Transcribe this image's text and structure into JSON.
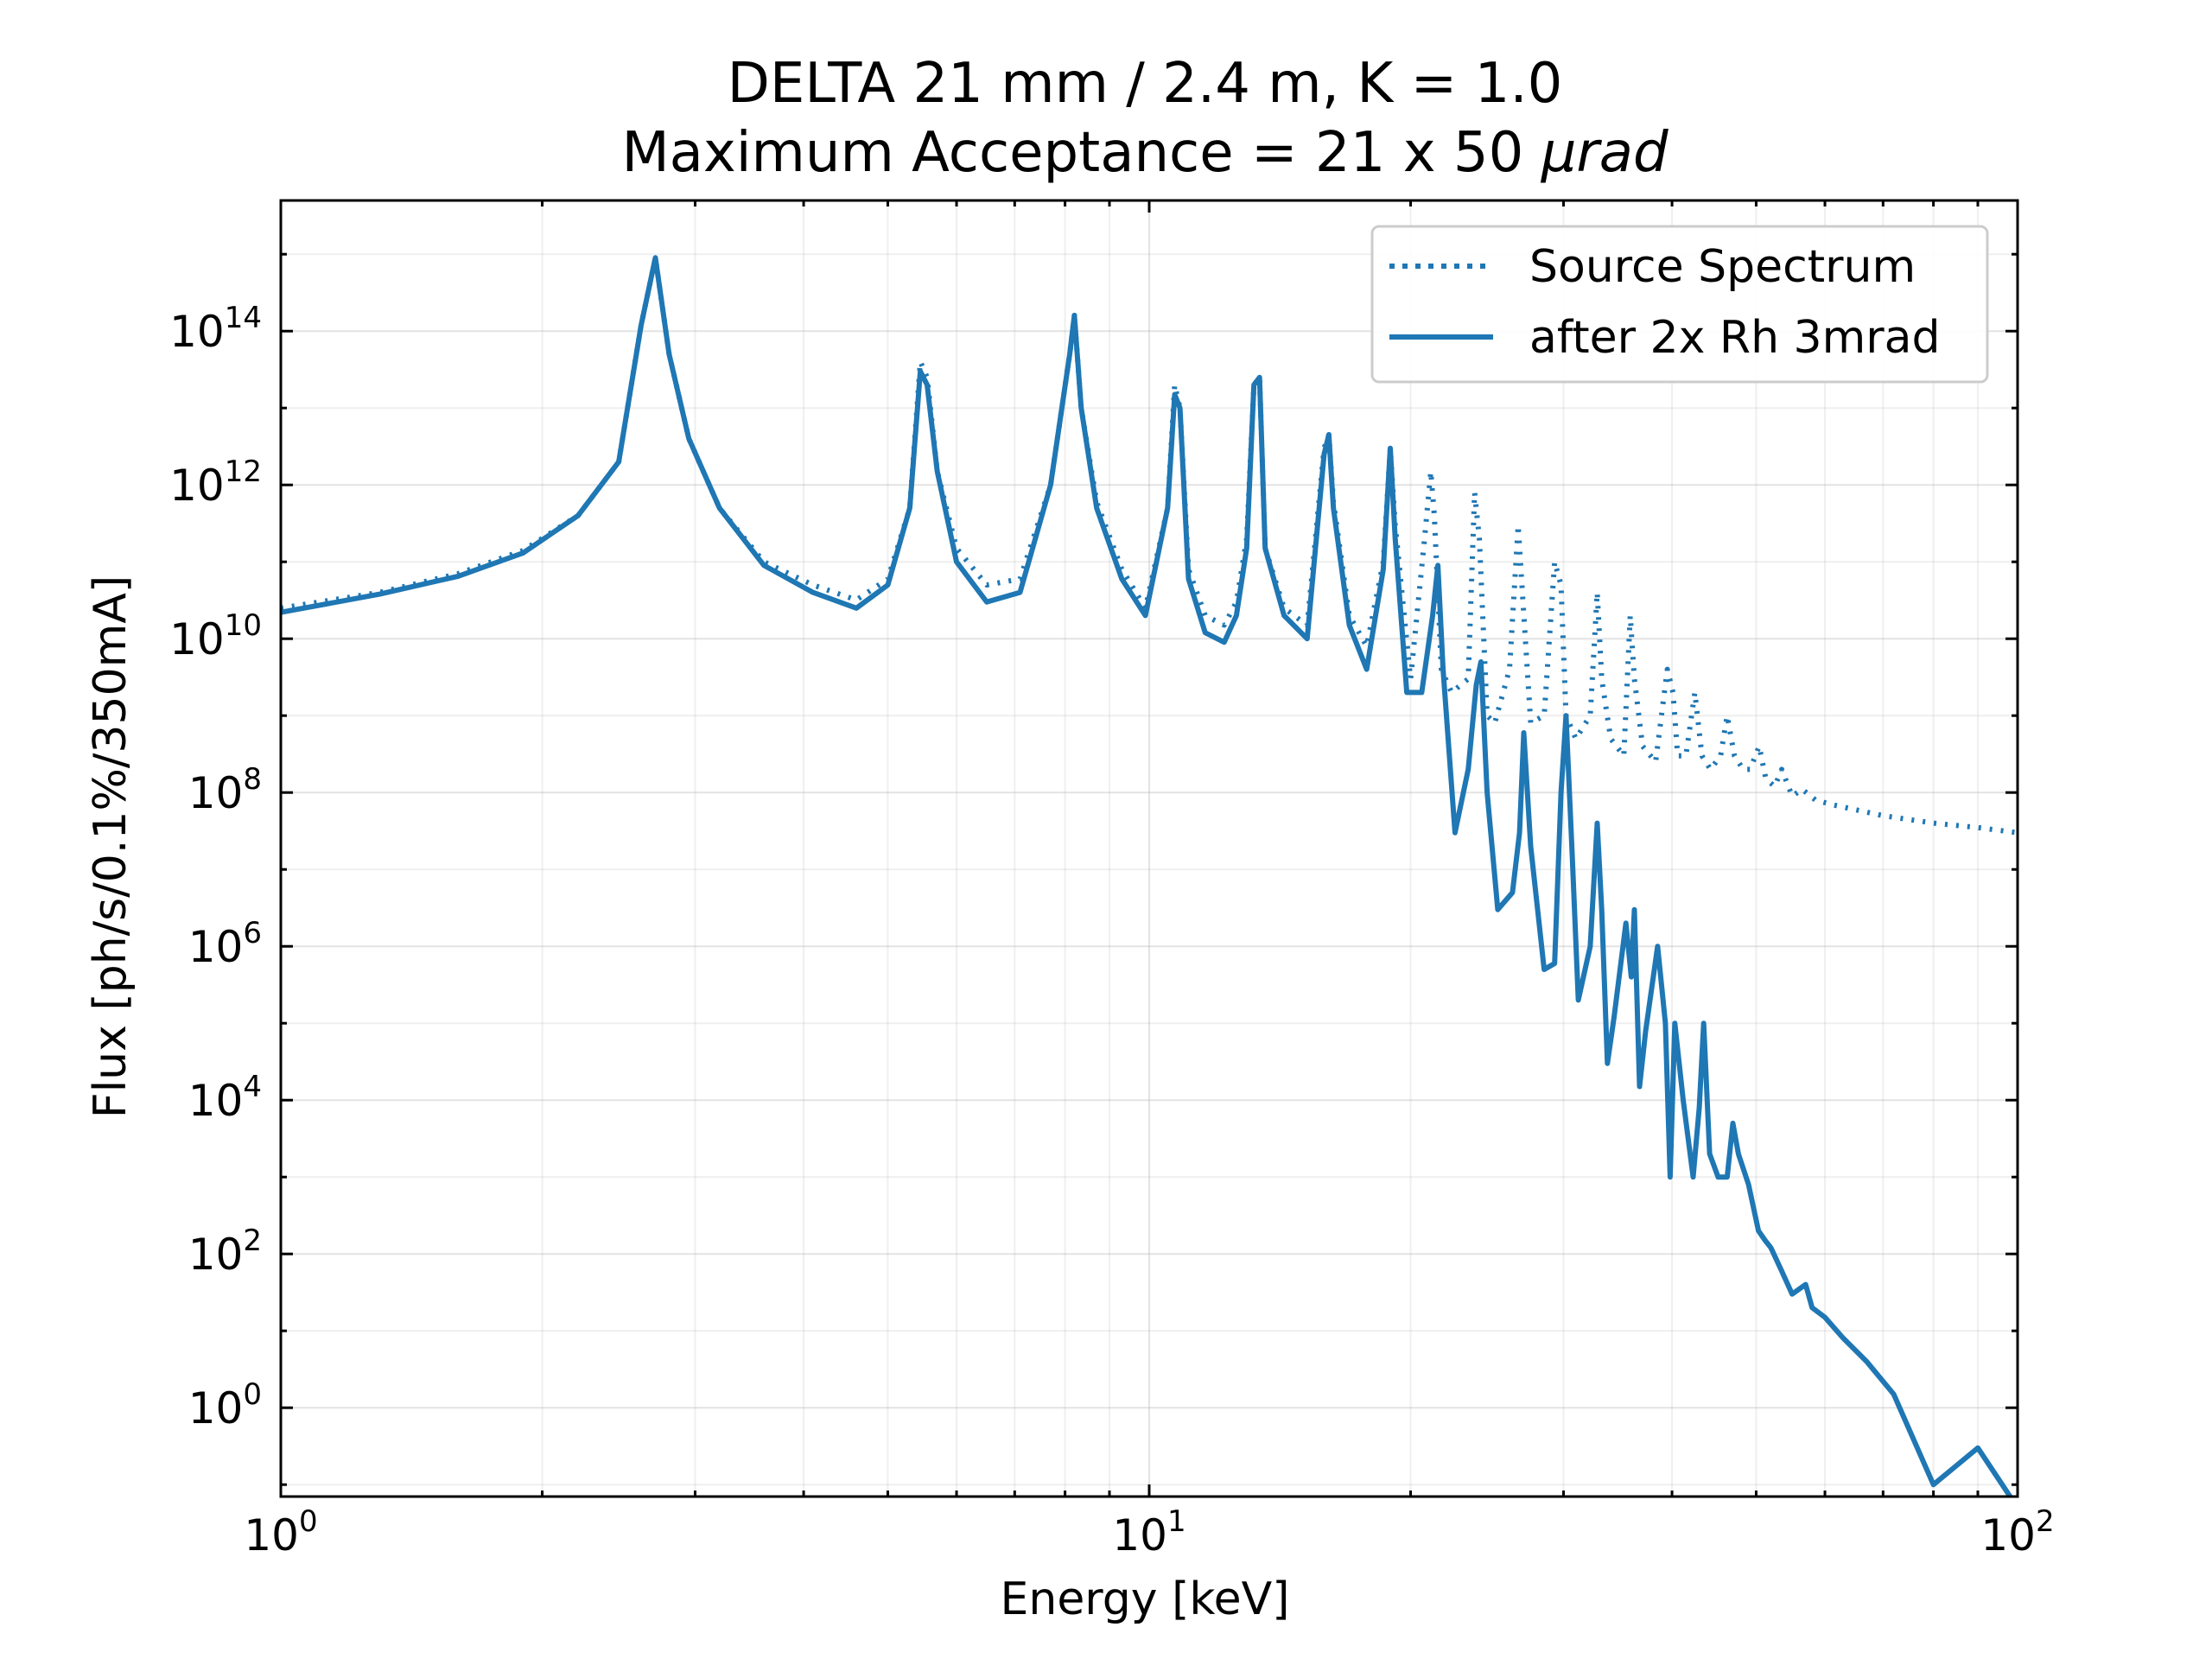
{
  "chart_data": {
    "type": "line",
    "title_line1": "DELTA 21 mm / 2.4 m, K = 1.0",
    "title_line2_prefix": "Maximum Acceptance = 21 x 50 ",
    "title_line2_unit": "μrad",
    "xlabel": "Energy [keV]",
    "ylabel": "Flux [ph/s/0.1%/350mA]",
    "xscale": "log",
    "yscale": "log",
    "xlim": [
      1,
      100
    ],
    "ylim": [
      0.07,
      5000000000000000.0
    ],
    "grid": true,
    "legend_position": "top-right",
    "x_ticks": [
      {
        "value": 1,
        "base": "10",
        "exp": "0"
      },
      {
        "value": 10,
        "base": "10",
        "exp": "1"
      },
      {
        "value": 100,
        "base": "10",
        "exp": "2"
      }
    ],
    "y_ticks": [
      {
        "value": 1,
        "base": "10",
        "exp": "0"
      },
      {
        "value": 100,
        "base": "10",
        "exp": "2"
      },
      {
        "value": 10000,
        "base": "10",
        "exp": "4"
      },
      {
        "value": 1000000,
        "base": "10",
        "exp": "6"
      },
      {
        "value": 100000000,
        "base": "10",
        "exp": "8"
      },
      {
        "value": 10000000000,
        "base": "10",
        "exp": "10"
      },
      {
        "value": 1000000000000,
        "base": "10",
        "exp": "12"
      },
      {
        "value": 100000000000000,
        "base": "10",
        "exp": "14"
      }
    ],
    "series": [
      {
        "name": "Source Spectrum",
        "style": "dotted",
        "color": "#1f77b4",
        "x": [
          1.0,
          1.3,
          1.6,
          1.9,
          2.2,
          2.45,
          2.6,
          2.7,
          2.8,
          2.95,
          3.2,
          3.6,
          4.1,
          4.6,
          5.0,
          5.3,
          5.45,
          5.55,
          5.7,
          6.0,
          6.5,
          7.1,
          7.7,
          8.1,
          8.2,
          8.35,
          8.7,
          9.3,
          9.9,
          10.5,
          10.7,
          10.85,
          11.1,
          11.6,
          12.2,
          12.6,
          12.95,
          13.2,
          13.4,
          13.6,
          14.3,
          15.2,
          15.9,
          16.1,
          16.3,
          17.0,
          17.8,
          18.6,
          18.95,
          19.2,
          20.0,
          20.7,
          21.1,
          21.3,
          21.7,
          22.3,
          23.3,
          23.7,
          24.0,
          24.5,
          25.0,
          26.0,
          26.6,
          26.9,
          27.5,
          28.5,
          29.3,
          29.8,
          30.2,
          31.0,
          32.2,
          32.8,
          33.2,
          34.0,
          35.2,
          35.8,
          36.2,
          37.0,
          38.3,
          39.5,
          40.1,
          40.6,
          41.5,
          42.5,
          43.3,
          44.3,
          45.5,
          46.3,
          47.2,
          48.3,
          49.2,
          50.4,
          51.3,
          52.5,
          53.5,
          55.0,
          56.5,
          58.5,
          61.0,
          65.0,
          70.0,
          80.0,
          90.0,
          100.0
        ],
        "y": [
          25000000000.0,
          40000000000.0,
          70000000000.0,
          140000000000.0,
          400000000000.0,
          2000000000000.0,
          120000000000000.0,
          900000000000000.0,
          50000000000000.0,
          4000000000000.0,
          500000000000.0,
          100000000000.0,
          50000000000.0,
          32000000000.0,
          60000000000.0,
          500000000000.0,
          40000000000000.0,
          25000000000000.0,
          1500000000000.0,
          150000000000.0,
          50000000000.0,
          60000000000.0,
          1000000000000.0,
          50000000000000.0,
          160000000000000.0,
          10000000000000.0,
          600000000000.0,
          80000000000.0,
          25000000000.0,
          500000000000.0,
          20000000000000.0,
          10000000000000.0,
          80000000000.0,
          20000000000.0,
          15000000000.0,
          30000000000.0,
          200000000000.0,
          20000000000000.0,
          25000000000000.0,
          150000000000.0,
          25000000000.0,
          15000000000.0,
          3000000000000.0,
          4500000000000.0,
          600000000000.0,
          20000000000.0,
          8000000000.0,
          100000000000.0,
          3000000000000.0,
          300000000000.0,
          3000000000.0,
          150000000000.0,
          1500000000000.0,
          400000000000.0,
          4000000000.0,
          2000000000.0,
          3000000000.0,
          800000000000.0,
          200000000000.0,
          1000000000.0,
          800000000.0,
          4000000000.0,
          300000000000.0,
          40000000000.0,
          800000000.0,
          1000000000.0,
          100000000000.0,
          50000000000.0,
          1000000000.0,
          500000000.0,
          1000000000.0,
          40000000000.0,
          3000000000.0,
          500000000.0,
          300000000.0,
          20000000000.0,
          3000000000.0,
          400000000.0,
          250000000.0,
          4000000000.0,
          2000000000.0,
          300000000.0,
          300000000.0,
          2000000000.0,
          300000000.0,
          200000000.0,
          300000000.0,
          1000000000.0,
          300000000.0,
          200000000.0,
          200000000.0,
          400000000.0,
          150000000.0,
          120000000.0,
          200000000.0,
          90000000.0,
          110000000.0,
          80000000.0,
          70000000.0,
          60000000.0,
          50000000.0,
          40000000.0,
          35000000.0,
          30000000.0
        ]
      },
      {
        "name": "after 2x Rh 3mrad",
        "style": "solid",
        "color": "#1f77b4",
        "x": [
          1.0,
          1.3,
          1.6,
          1.9,
          2.2,
          2.45,
          2.6,
          2.7,
          2.8,
          2.95,
          3.2,
          3.6,
          4.1,
          4.6,
          5.0,
          5.3,
          5.45,
          5.55,
          5.7,
          6.0,
          6.5,
          7.1,
          7.7,
          8.1,
          8.2,
          8.35,
          8.7,
          9.3,
          9.9,
          10.5,
          10.7,
          10.85,
          11.1,
          11.6,
          12.2,
          12.6,
          12.95,
          13.2,
          13.4,
          13.6,
          14.3,
          15.2,
          15.9,
          16.1,
          16.3,
          17.0,
          17.8,
          18.6,
          18.95,
          19.2,
          19.8,
          20.6,
          21.2,
          21.5,
          21.8,
          22.5,
          23.3,
          23.8,
          24.1,
          24.5,
          25.2,
          26.2,
          26.7,
          27.0,
          27.5,
          28.5,
          29.3,
          29.8,
          30.2,
          30.7,
          31.2,
          32.2,
          32.8,
          33.2,
          33.7,
          34.3,
          35.4,
          35.9,
          36.2,
          36.7,
          37.3,
          38.5,
          39.3,
          39.8,
          40.3,
          41.2,
          42.3,
          43.0,
          43.5,
          44.2,
          45.2,
          46.3,
          47.0,
          47.7,
          49.0,
          50.3,
          51.2,
          52.0,
          53.5,
          55.0,
          57.0,
          58.0,
          60.0,
          63.0,
          67.0,
          72.0,
          80.0,
          90.0,
          100.0
        ],
        "y": [
          22000000000.0,
          38000000000.0,
          65000000000.0,
          130000000000.0,
          400000000000.0,
          2000000000000.0,
          120000000000000.0,
          900000000000000.0,
          50000000000000.0,
          4000000000000.0,
          500000000000.0,
          90000000000.0,
          40000000000.0,
          25000000000.0,
          50000000000.0,
          500000000000.0,
          30000000000000.0,
          20000000000000.0,
          1500000000000.0,
          100000000000.0,
          30000000000.0,
          40000000000.0,
          1000000000000.0,
          50000000000000.0,
          160000000000000.0,
          10000000000000.0,
          500000000000.0,
          60000000000.0,
          20000000000.0,
          500000000000.0,
          15000000000000.0,
          10000000000000.0,
          60000000000.0,
          12000000000.0,
          9000000000.0,
          20000000000.0,
          150000000000.0,
          20000000000000.0,
          25000000000000.0,
          150000000000.0,
          20000000000.0,
          10000000000.0,
          2500000000000.0,
          4500000000000.0,
          500000000000.0,
          15000000000.0,
          4000000000.0,
          80000000000.0,
          3000000000000.0,
          200000000000.0,
          2000000000.0,
          2000000000.0,
          20000000000.0,
          90000000000.0,
          4000000000.0,
          30000000.0,
          200000000.0,
          2500000000.0,
          5000000000.0,
          100000000.0,
          3000000.0,
          5000000.0,
          30000000.0,
          600000000.0,
          20000000.0,
          500000.0,
          600000.0,
          100000000.0,
          1000000000.0,
          15000000.0,
          200000.0,
          1000000.0,
          40000000.0,
          3000000.0,
          30000.0,
          120000.0,
          2000000.0,
          400000.0,
          3000000.0,
          15000.0,
          80000.0,
          1000000.0,
          100000.0,
          1000.0,
          100000.0,
          10000.0,
          1000.0,
          8000.0,
          100000.0,
          2000.0,
          1000.0,
          1000.0,
          5000.0,
          2000.0,
          800.0,
          200.0,
          150.0,
          120.0,
          60.0,
          30.0,
          40.0,
          20.0,
          15.0,
          8,
          4,
          1.5,
          0.1,
          0.3,
          0.05
        ]
      }
    ]
  }
}
